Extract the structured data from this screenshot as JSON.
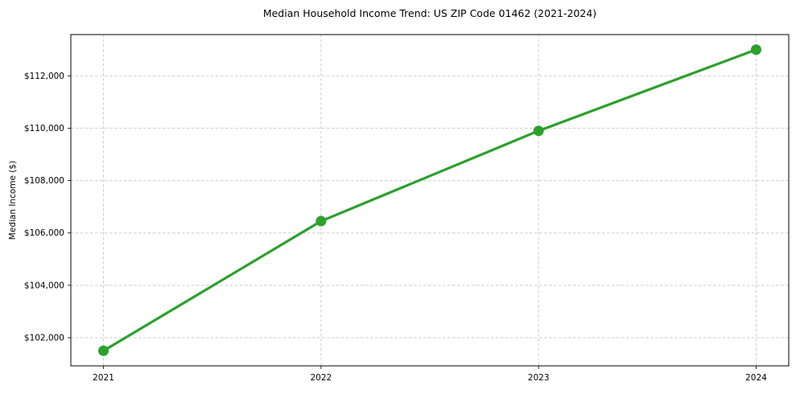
{
  "chart_data": {
    "type": "line",
    "title": "Median Household Income Trend: US ZIP Code 01462 (2021-2024)",
    "xlabel": "",
    "ylabel": "Median Income ($)",
    "x": [
      2021,
      2022,
      2023,
      2024
    ],
    "x_tick_labels": [
      "2021",
      "2022",
      "2023",
      "2024"
    ],
    "series": [
      {
        "name": "Median Household Income",
        "values": [
          101500,
          106450,
          109900,
          113000
        ],
        "color": "#2ca02c",
        "marker": "circle"
      }
    ],
    "y_ticks": [
      102000,
      104000,
      106000,
      108000,
      110000,
      112000
    ],
    "y_tick_labels": [
      "$102,000",
      "$104,000",
      "$106,000",
      "$108,000",
      "$110,000",
      "$112,000"
    ],
    "xlim": [
      2020.85,
      2024.15
    ],
    "ylim": [
      100925,
      113575
    ],
    "grid": true,
    "grid_style": "dashed",
    "grid_color": "#cccccc",
    "axis_color": "#000000",
    "tick_label_color": "#000000",
    "background": "#ffffff",
    "legend_position": "none"
  }
}
